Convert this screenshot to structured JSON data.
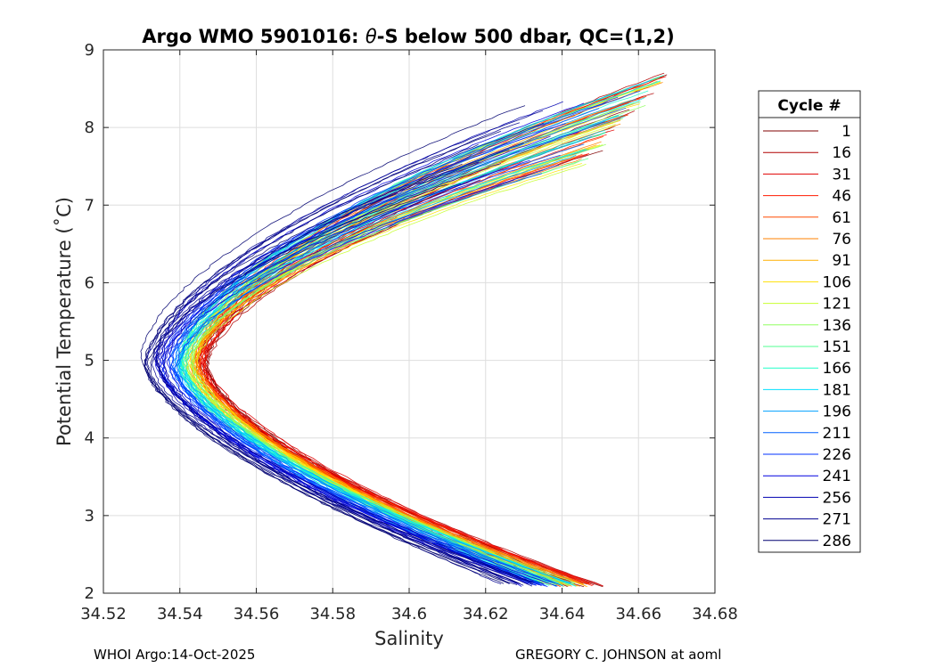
{
  "chart_data": {
    "type": "line",
    "title_pre": "Argo WMO 5901016: ",
    "title_theta": "θ",
    "title_post": "-S below 500 dbar,  QC=(1,2)",
    "xlabel": "Salinity",
    "ylabel": "Potential Temperature (˚C)",
    "xlim": [
      34.52,
      34.68
    ],
    "ylim": [
      2,
      9
    ],
    "xticks": [
      34.52,
      34.54,
      34.56,
      34.58,
      34.6,
      34.62,
      34.64,
      34.66,
      34.68
    ],
    "xtick_labels": [
      "34.52",
      "34.54",
      "34.56",
      "34.58",
      "34.6",
      "34.62",
      "34.64",
      "34.66",
      "34.68"
    ],
    "yticks": [
      2,
      3,
      4,
      5,
      6,
      7,
      8,
      9
    ],
    "ytick_labels": [
      "2",
      "3",
      "4",
      "5",
      "6",
      "7",
      "8",
      "9"
    ],
    "grid": true,
    "legend_title": "Cycle #",
    "legend_position": "right-outside",
    "series": [
      {
        "name": "1",
        "color": "#800000",
        "s_min": 34.5455,
        "s_top": 34.6705,
        "t_top": 8.78,
        "s_bottom": 34.6505,
        "t_bottom": 2.08
      },
      {
        "name": "16",
        "color": "#b00000",
        "s_min": 34.5455,
        "s_top": 34.6695,
        "t_top": 8.74,
        "s_bottom": 34.6515,
        "t_bottom": 2.08
      },
      {
        "name": "31",
        "color": "#e00000",
        "s_min": 34.5445,
        "s_top": 34.669,
        "t_top": 8.72,
        "s_bottom": 34.651,
        "t_bottom": 2.08
      },
      {
        "name": "46",
        "color": "#ff1a00",
        "s_min": 34.544,
        "s_top": 34.668,
        "t_top": 8.7,
        "s_bottom": 34.65,
        "t_bottom": 2.08
      },
      {
        "name": "61",
        "color": "#ff4a00",
        "s_min": 34.5435,
        "s_top": 34.6675,
        "t_top": 8.68,
        "s_bottom": 34.6495,
        "t_bottom": 2.08
      },
      {
        "name": "76",
        "color": "#ff8000",
        "s_min": 34.543,
        "s_top": 34.667,
        "t_top": 8.66,
        "s_bottom": 34.649,
        "t_bottom": 2.08
      },
      {
        "name": "91",
        "color": "#ffb000",
        "s_min": 34.542,
        "s_top": 34.666,
        "t_top": 8.64,
        "s_bottom": 34.648,
        "t_bottom": 2.08
      },
      {
        "name": "106",
        "color": "#ffe000",
        "s_min": 34.5415,
        "s_top": 34.666,
        "t_top": 8.62,
        "s_bottom": 34.647,
        "t_bottom": 2.08
      },
      {
        "name": "121",
        "color": "#c8ff30",
        "s_min": 34.541,
        "s_top": 34.6665,
        "t_top": 8.6,
        "s_bottom": 34.646,
        "t_bottom": 2.08
      },
      {
        "name": "136",
        "color": "#90ff60",
        "s_min": 34.5405,
        "s_top": 34.667,
        "t_top": 8.62,
        "s_bottom": 34.6455,
        "t_bottom": 2.08
      },
      {
        "name": "151",
        "color": "#50ff90",
        "s_min": 34.54,
        "s_top": 34.6675,
        "t_top": 8.7,
        "s_bottom": 34.645,
        "t_bottom": 2.08
      },
      {
        "name": "166",
        "color": "#20ffc8",
        "s_min": 34.5395,
        "s_top": 34.668,
        "t_top": 8.74,
        "s_bottom": 34.6445,
        "t_bottom": 2.08
      },
      {
        "name": "181",
        "color": "#00e0ff",
        "s_min": 34.539,
        "s_top": 34.6675,
        "t_top": 8.72,
        "s_bottom": 34.644,
        "t_bottom": 2.08
      },
      {
        "name": "196",
        "color": "#00a0ff",
        "s_min": 34.538,
        "s_top": 34.666,
        "t_top": 8.66,
        "s_bottom": 34.643,
        "t_bottom": 2.08
      },
      {
        "name": "211",
        "color": "#0060ff",
        "s_min": 34.537,
        "s_top": 34.662,
        "t_top": 8.58,
        "s_bottom": 34.642,
        "t_bottom": 2.08
      },
      {
        "name": "226",
        "color": "#0030ff",
        "s_min": 34.536,
        "s_top": 34.656,
        "t_top": 8.5,
        "s_bottom": 34.641,
        "t_bottom": 2.08
      },
      {
        "name": "241",
        "color": "#0000e0",
        "s_min": 34.534,
        "s_top": 34.648,
        "t_top": 8.42,
        "s_bottom": 34.639,
        "t_bottom": 2.08
      },
      {
        "name": "256",
        "color": "#0000b0",
        "s_min": 34.533,
        "s_top": 34.641,
        "t_top": 8.36,
        "s_bottom": 34.637,
        "t_bottom": 2.08
      },
      {
        "name": "271",
        "color": "#000090",
        "s_min": 34.5315,
        "s_top": 34.636,
        "t_top": 8.32,
        "s_bottom": 34.635,
        "t_bottom": 2.09
      },
      {
        "name": "286",
        "color": "#000070",
        "s_min": 34.53,
        "s_top": 34.631,
        "t_top": 8.3,
        "s_bottom": 34.633,
        "t_bottom": 2.1
      }
    ]
  },
  "footer": {
    "left": "WHOI Argo:14-Oct-2025",
    "right": "GREGORY C. JOHNSON at aoml"
  }
}
